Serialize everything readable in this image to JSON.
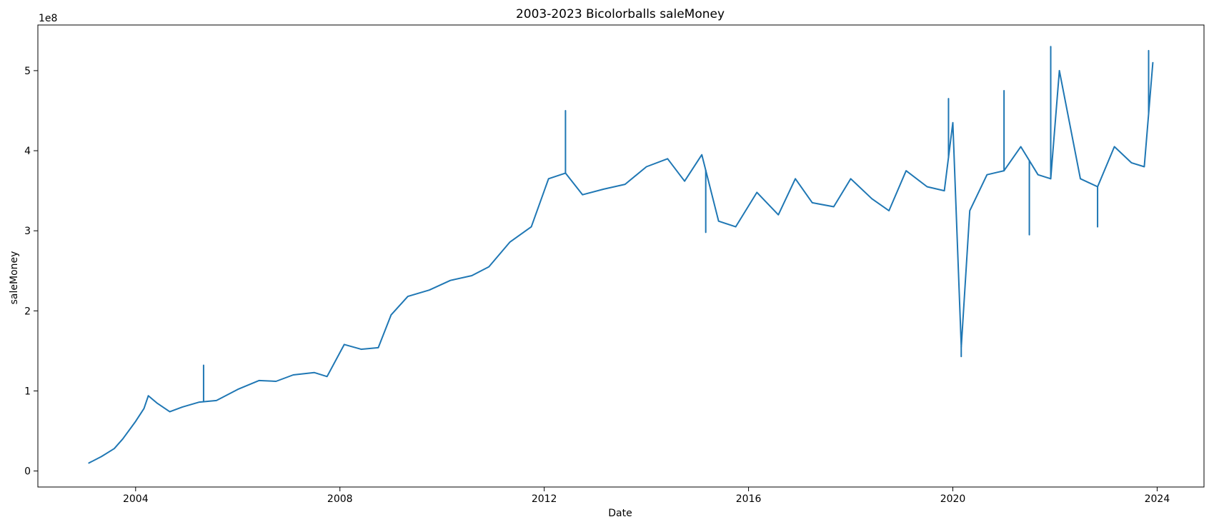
{
  "chart_data": {
    "type": "line",
    "title": "2003-2023 Bicolorballs saleMoney",
    "xlabel": "Date",
    "ylabel": "saleMoney",
    "y_scale_label": "1e8",
    "x_axis_type": "date",
    "xlim": [
      "2002-02-01",
      "2024-12-01"
    ],
    "ylim": [
      -0.2,
      5.57
    ],
    "x_ticks": [
      2004,
      2008,
      2012,
      2016,
      2020,
      2024
    ],
    "x_tick_labels": [
      "2004",
      "2008",
      "2012",
      "2016",
      "2020",
      "2024"
    ],
    "y_ticks": [
      0,
      1,
      2,
      3,
      4,
      5
    ],
    "y_tick_labels": [
      "0",
      "1",
      "2",
      "3",
      "4",
      "5"
    ],
    "grid": false,
    "legend": "none",
    "line_color": "#1f77b4",
    "series": [
      {
        "x": [
          "2003-02-01",
          "2003-05-01",
          "2003-08-01",
          "2003-10-01",
          "2004-01-01",
          "2004-03-01",
          "2004-04-01",
          "2004-06-01",
          "2004-09-01",
          "2004-12-01",
          "2005-04-01",
          "2005-08-01",
          "2006-01-01",
          "2006-06-01",
          "2006-10-01",
          "2007-02-01",
          "2007-07-01",
          "2007-10-01",
          "2008-02-01",
          "2008-06-01",
          "2008-10-01",
          "2009-01-01",
          "2009-05-01",
          "2009-10-01",
          "2010-03-01",
          "2010-08-01",
          "2010-12-01",
          "2011-05-01",
          "2011-10-01",
          "2012-02-01",
          "2012-06-01",
          "2012-10-01",
          "2013-03-01",
          "2013-08-01",
          "2014-01-01",
          "2014-06-01",
          "2014-10-01",
          "2015-02-01",
          "2015-06-01",
          "2015-10-01",
          "2016-03-01",
          "2016-08-01",
          "2016-12-01",
          "2017-04-01",
          "2017-09-01",
          "2018-01-01",
          "2018-06-01",
          "2018-10-01",
          "2019-02-01",
          "2019-07-01",
          "2019-11-01",
          "2020-01-01",
          "2020-03-01",
          "2020-05-01",
          "2020-09-01",
          "2021-01-01",
          "2021-05-01",
          "2021-09-01",
          "2021-12-01",
          "2022-02-01",
          "2022-07-01",
          "2022-11-01",
          "2023-03-01",
          "2023-07-01",
          "2023-10-01",
          "2023-12-01"
        ],
        "values": [
          0.1,
          0.18,
          0.28,
          0.4,
          0.62,
          0.78,
          0.94,
          0.85,
          0.74,
          0.8,
          0.86,
          0.88,
          1.02,
          1.13,
          1.12,
          1.2,
          1.23,
          1.18,
          1.58,
          1.52,
          1.54,
          1.95,
          2.18,
          2.26,
          2.38,
          2.44,
          2.55,
          2.86,
          3.05,
          3.65,
          3.72,
          3.45,
          3.52,
          3.58,
          3.8,
          3.9,
          3.62,
          3.95,
          3.12,
          3.05,
          3.48,
          3.2,
          3.65,
          3.35,
          3.3,
          3.65,
          3.4,
          3.25,
          3.75,
          3.55,
          3.5,
          4.35,
          1.55,
          3.25,
          3.7,
          3.75,
          4.05,
          3.7,
          3.65,
          5.0,
          3.65,
          3.55,
          4.05,
          3.85,
          3.8,
          5.1
        ]
      }
    ],
    "spikes": [
      {
        "x": "2005-05-01",
        "value": 1.32
      },
      {
        "x": "2012-06-01",
        "value": 4.5
      },
      {
        "x": "2015-03-01",
        "value": 2.98
      },
      {
        "x": "2019-12-01",
        "value": 4.65
      },
      {
        "x": "2020-03-01",
        "value": 1.43
      },
      {
        "x": "2021-01-01",
        "value": 4.75
      },
      {
        "x": "2021-07-01",
        "value": 2.95
      },
      {
        "x": "2021-12-01",
        "value": 5.3
      },
      {
        "x": "2022-11-01",
        "value": 3.05
      },
      {
        "x": "2023-11-01",
        "value": 5.25
      }
    ]
  }
}
